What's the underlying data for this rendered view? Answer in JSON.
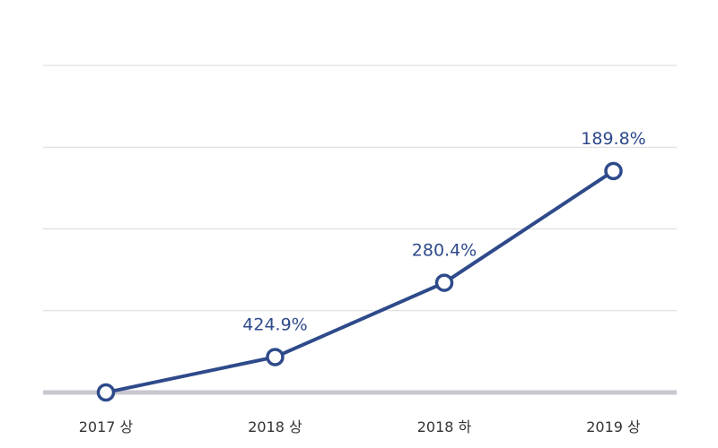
{
  "chart_data": {
    "type": "line",
    "title": "",
    "xlabel": "",
    "ylabel": "",
    "categories": [
      "2017 상",
      "2018 상",
      "2018 하",
      "2019 상"
    ],
    "series": [
      {
        "values": [
          0,
          42.8,
          132.5,
          267.5
        ],
        "data_labels": [
          "",
          "424.9%",
          "280.4%",
          "189.8%"
        ]
      }
    ],
    "ylim": [
      0,
      395
    ],
    "y_gridlines": [
      0,
      98.75,
      197.5,
      296.25,
      395
    ],
    "grid": true,
    "legend": "none"
  },
  "colors": {
    "series": "#2e4a8a",
    "label": "#2e4a8a",
    "grid": "#d9d9d9",
    "baseline": "#c8c7d0"
  }
}
